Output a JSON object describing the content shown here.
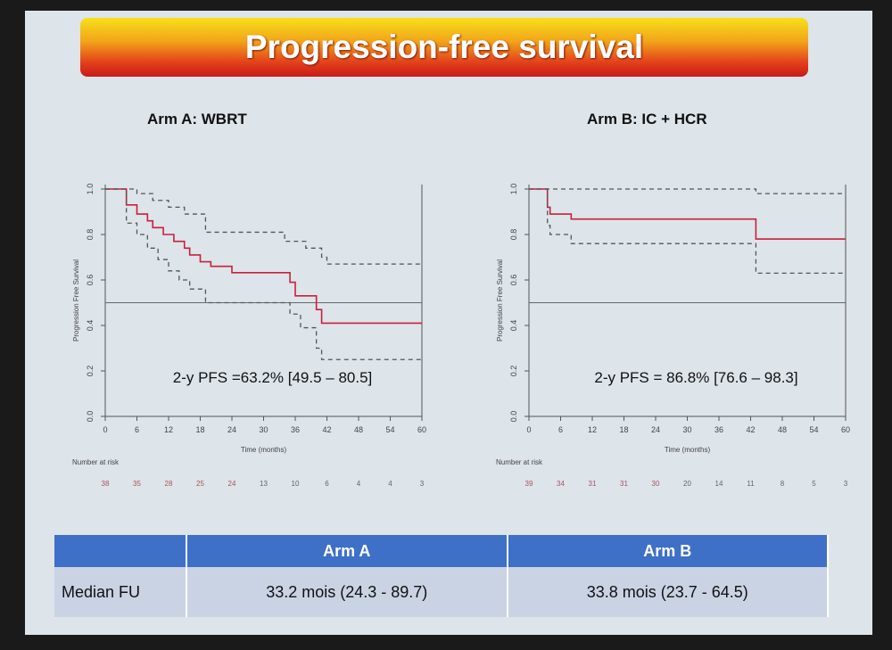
{
  "slide": {
    "title": "Progression-free survival"
  },
  "table": {
    "headers": [
      "",
      "Arm A",
      "Arm B"
    ],
    "rows": [
      [
        "Median FU",
        "33.2 mois (24.3 - 89.7)",
        "33.8 mois (23.7 - 64.5)"
      ]
    ]
  },
  "chart_data": [
    {
      "type": "line",
      "title": "Arm A: WBRT",
      "xlabel": "Time (months)",
      "ylabel": "Progression Free Survival",
      "xlim": [
        0,
        60
      ],
      "ylim": [
        0,
        1
      ],
      "xticks": [
        0,
        6,
        12,
        18,
        24,
        30,
        36,
        42,
        48,
        54,
        60
      ],
      "yticks": [
        "0.0",
        "0.2",
        "0.4",
        "0.6",
        "0.8",
        "1.0"
      ],
      "annotation": "2-y PFS =63.2% [49.5 – 80.5]",
      "risk_label": "Number at risk",
      "number_at_risk": [
        38,
        35,
        28,
        25,
        24,
        13,
        10,
        6,
        4,
        4,
        3
      ],
      "reference_line": 0.5,
      "series": [
        {
          "name": "estimate",
          "style": "solid",
          "x": [
            0,
            4,
            6,
            8,
            9,
            11,
            13,
            15,
            16,
            18,
            20,
            24,
            35,
            36,
            40,
            41,
            60
          ],
          "y": [
            1,
            0.93,
            0.89,
            0.86,
            0.83,
            0.8,
            0.77,
            0.74,
            0.71,
            0.68,
            0.66,
            0.632,
            0.59,
            0.53,
            0.47,
            0.41,
            0.41
          ]
        },
        {
          "name": "upper CI",
          "style": "dashed",
          "x": [
            0,
            6,
            9,
            12,
            15,
            19,
            34,
            38,
            41,
            42,
            60
          ],
          "y": [
            1,
            0.98,
            0.95,
            0.92,
            0.89,
            0.81,
            0.77,
            0.74,
            0.7,
            0.67,
            0.67
          ]
        },
        {
          "name": "lower CI",
          "style": "dashed",
          "x": [
            0,
            4,
            6,
            8,
            10,
            12,
            14,
            16,
            19,
            35,
            37,
            40,
            41,
            60
          ],
          "y": [
            1,
            0.85,
            0.8,
            0.74,
            0.69,
            0.64,
            0.6,
            0.56,
            0.5,
            0.45,
            0.39,
            0.3,
            0.25,
            0.25
          ]
        }
      ]
    },
    {
      "type": "line",
      "title": "Arm B: IC + HCR",
      "xlabel": "Time (months)",
      "ylabel": "Progression Free Survival",
      "xlim": [
        0,
        60
      ],
      "ylim": [
        0,
        1
      ],
      "xticks": [
        0,
        6,
        12,
        18,
        24,
        30,
        36,
        42,
        48,
        54,
        60
      ],
      "yticks": [
        "0.0",
        "0.2",
        "0.4",
        "0.6",
        "0.8",
        "1.0"
      ],
      "annotation": "2-y PFS = 86.8% [76.6 – 98.3]",
      "risk_label": "Number at risk",
      "number_at_risk": [
        39,
        34,
        31,
        31,
        30,
        20,
        14,
        11,
        8,
        5,
        3
      ],
      "reference_line": 0.5,
      "series": [
        {
          "name": "estimate",
          "style": "solid",
          "x": [
            0,
            3.5,
            4,
            8,
            43,
            60
          ],
          "y": [
            1,
            0.92,
            0.89,
            0.868,
            0.78,
            0.78
          ]
        },
        {
          "name": "upper CI",
          "style": "dashed",
          "x": [
            0,
            43,
            60
          ],
          "y": [
            1,
            0.98,
            0.98
          ]
        },
        {
          "name": "lower CI",
          "style": "dashed",
          "x": [
            0,
            3.5,
            4,
            8,
            43,
            60
          ],
          "y": [
            1,
            0.84,
            0.8,
            0.76,
            0.63,
            0.63
          ]
        }
      ]
    }
  ]
}
